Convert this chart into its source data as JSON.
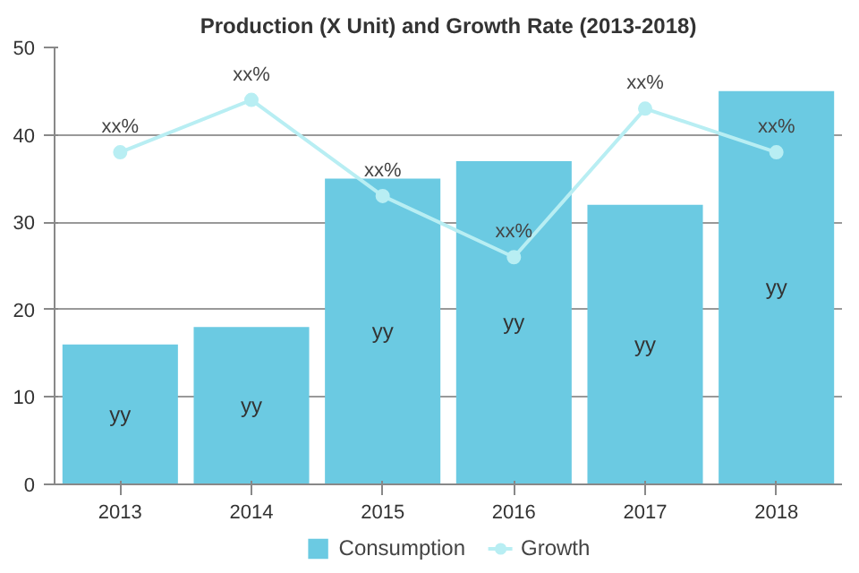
{
  "chart_data": {
    "type": "bar",
    "title": "Production (X Unit) and Growth Rate (2013-2018)",
    "categories": [
      "2013",
      "2014",
      "2015",
      "2016",
      "2017",
      "2018"
    ],
    "series": [
      {
        "name": "Consumption",
        "color": "#6bcae2",
        "values": [
          16,
          18,
          35,
          37,
          32,
          45
        ],
        "value_labels": [
          "yy",
          "yy",
          "yy",
          "yy",
          "yy",
          "yy"
        ]
      },
      {
        "name": "Growth",
        "type": "line",
        "color": "#b8eef3",
        "values": [
          38,
          44,
          33,
          26,
          43,
          38
        ],
        "value_labels": [
          "xx%",
          "xx%",
          "xx%",
          "xx%",
          "xx%",
          "xx%"
        ]
      }
    ],
    "ylim": [
      0,
      50
    ],
    "yticks": [
      0,
      10,
      20,
      30,
      40,
      50
    ],
    "grid": "y",
    "legend": "bottom",
    "marker": "circle"
  }
}
